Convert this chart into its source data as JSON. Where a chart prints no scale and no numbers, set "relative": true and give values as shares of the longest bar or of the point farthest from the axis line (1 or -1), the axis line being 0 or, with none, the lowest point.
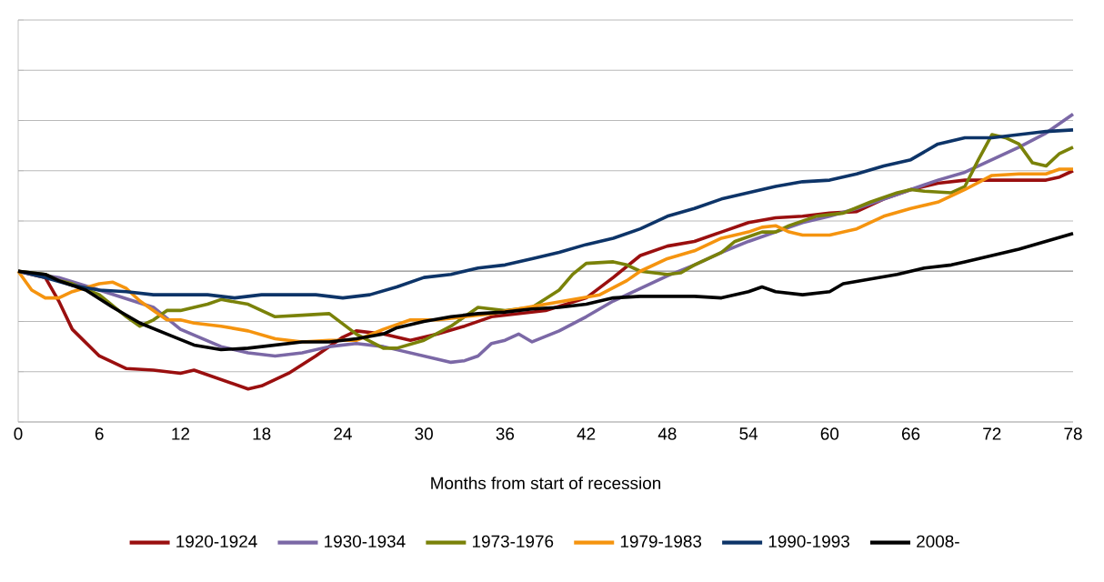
{
  "chart_data": {
    "type": "line",
    "relative": true,
    "xlabel": "Months from start of recession",
    "xlim": [
      0,
      78
    ],
    "xticks": [
      0,
      6,
      12,
      18,
      24,
      30,
      36,
      42,
      48,
      54,
      60,
      66,
      72,
      78
    ],
    "grid": "y",
    "legend": "bottom",
    "marker": "none",
    "line_style": "solid",
    "series": [
      {
        "name": "1920-1924",
        "color": "#9a0f0f",
        "x": [
          0,
          2,
          3,
          4,
          6,
          8,
          10,
          12,
          13,
          15,
          17,
          18,
          20,
          22,
          24,
          25,
          27,
          29,
          31,
          33,
          35,
          37,
          39,
          42,
          44,
          46,
          48,
          50,
          52,
          54,
          56,
          58,
          60,
          62,
          64,
          66,
          68,
          70,
          72,
          74,
          76,
          77,
          78
        ],
        "values": [
          0,
          -0.04,
          -0.19,
          -0.37,
          -0.54,
          -0.62,
          -0.63,
          -0.65,
          -0.63,
          -0.69,
          -0.75,
          -0.73,
          -0.65,
          -0.54,
          -0.42,
          -0.38,
          -0.4,
          -0.44,
          -0.4,
          -0.35,
          -0.29,
          -0.27,
          -0.25,
          -0.17,
          -0.04,
          0.1,
          0.16,
          0.19,
          0.25,
          0.31,
          0.34,
          0.35,
          0.37,
          0.38,
          0.46,
          0.52,
          0.56,
          0.58,
          0.58,
          0.58,
          0.58,
          0.6,
          0.64
        ]
      },
      {
        "name": "1930-1934",
        "color": "#7b68a6",
        "x": [
          0,
          3,
          6,
          10,
          12,
          15,
          17,
          19,
          21,
          23,
          25,
          27,
          29,
          31,
          32,
          33,
          34,
          35,
          36,
          37,
          38,
          40,
          42,
          44,
          46,
          48,
          50,
          52,
          54,
          56,
          58,
          60,
          62,
          64,
          66,
          68,
          70,
          72,
          74,
          76,
          78
        ],
        "values": [
          0,
          -0.04,
          -0.12,
          -0.23,
          -0.37,
          -0.48,
          -0.52,
          -0.54,
          -0.52,
          -0.48,
          -0.46,
          -0.48,
          -0.52,
          -0.56,
          -0.58,
          -0.57,
          -0.54,
          -0.46,
          -0.44,
          -0.4,
          -0.45,
          -0.38,
          -0.29,
          -0.19,
          -0.11,
          -0.03,
          0.04,
          0.12,
          0.19,
          0.25,
          0.31,
          0.35,
          0.4,
          0.46,
          0.52,
          0.58,
          0.63,
          0.71,
          0.79,
          0.88,
          1
        ]
      },
      {
        "name": "1973-1976",
        "color": "#7a8209",
        "x": [
          0,
          2,
          3,
          4,
          6,
          8,
          9,
          10,
          11,
          12,
          14,
          15,
          17,
          19,
          21,
          23,
          25,
          27,
          28,
          30,
          32,
          34,
          36,
          38,
          40,
          41,
          42,
          44,
          45,
          46,
          48,
          49,
          50,
          52,
          53,
          55,
          56,
          57,
          59,
          61,
          63,
          65,
          66,
          67,
          69,
          70,
          71,
          72,
          73,
          74,
          75,
          76,
          77,
          78
        ],
        "values": [
          0,
          -0.02,
          -0.06,
          -0.08,
          -0.15,
          -0.29,
          -0.35,
          -0.31,
          -0.25,
          -0.25,
          -0.21,
          -0.18,
          -0.21,
          -0.29,
          -0.28,
          -0.27,
          -0.4,
          -0.49,
          -0.49,
          -0.44,
          -0.35,
          -0.23,
          -0.25,
          -0.23,
          -0.12,
          -0.02,
          0.05,
          0.06,
          0.04,
          0,
          -0.02,
          -0.01,
          0.04,
          0.12,
          0.19,
          0.25,
          0.25,
          0.29,
          0.35,
          0.37,
          0.44,
          0.5,
          0.52,
          0.51,
          0.5,
          0.54,
          0.71,
          0.87,
          0.85,
          0.81,
          0.69,
          0.67,
          0.75,
          0.79
        ]
      },
      {
        "name": "1979-1983",
        "color": "#f5940f",
        "x": [
          0,
          1,
          2,
          3,
          4,
          6,
          7,
          8,
          9,
          10,
          11,
          12,
          13,
          15,
          17,
          19,
          21,
          23,
          25,
          27,
          29,
          31,
          33,
          35,
          37,
          39,
          41,
          43,
          45,
          46,
          48,
          50,
          52,
          54,
          55,
          56,
          57,
          58,
          60,
          62,
          64,
          66,
          68,
          70,
          72,
          74,
          76,
          77,
          78
        ],
        "values": [
          0,
          -0.12,
          -0.17,
          -0.17,
          -0.13,
          -0.08,
          -0.07,
          -0.11,
          -0.19,
          -0.25,
          -0.31,
          -0.31,
          -0.33,
          -0.35,
          -0.38,
          -0.43,
          -0.45,
          -0.44,
          -0.44,
          -0.37,
          -0.31,
          -0.31,
          -0.29,
          -0.27,
          -0.24,
          -0.21,
          -0.18,
          -0.15,
          -0.06,
          0,
          0.08,
          0.13,
          0.21,
          0.25,
          0.28,
          0.29,
          0.25,
          0.23,
          0.23,
          0.27,
          0.35,
          0.4,
          0.44,
          0.52,
          0.61,
          0.62,
          0.62,
          0.65,
          0.65
        ]
      },
      {
        "name": "1990-1993",
        "color": "#0d3468",
        "x": [
          0,
          2,
          4,
          6,
          8,
          10,
          12,
          14,
          16,
          18,
          20,
          22,
          24,
          26,
          28,
          30,
          32,
          34,
          36,
          38,
          40,
          42,
          44,
          46,
          48,
          50,
          52,
          54,
          56,
          58,
          60,
          62,
          64,
          66,
          68,
          70,
          72,
          74,
          76,
          78
        ],
        "values": [
          0,
          -0.04,
          -0.09,
          -0.12,
          -0.13,
          -0.15,
          -0.15,
          -0.15,
          -0.17,
          -0.15,
          -0.15,
          -0.15,
          -0.17,
          -0.15,
          -0.1,
          -0.04,
          -0.02,
          0.02,
          0.04,
          0.08,
          0.12,
          0.17,
          0.21,
          0.27,
          0.35,
          0.4,
          0.46,
          0.5,
          0.54,
          0.57,
          0.58,
          0.62,
          0.67,
          0.71,
          0.81,
          0.85,
          0.85,
          0.87,
          0.89,
          0.9
        ]
      },
      {
        "name": "2008-",
        "color": "#000000",
        "x": [
          0,
          1,
          2,
          3,
          5,
          7,
          9,
          11,
          13,
          15,
          17,
          19,
          21,
          23,
          25,
          27,
          28,
          30,
          32,
          34,
          36,
          38,
          40,
          42,
          44,
          46,
          48,
          50,
          52,
          54,
          55,
          56,
          58,
          60,
          61,
          63,
          65,
          67,
          69,
          70,
          72,
          74,
          76,
          78
        ],
        "values": [
          0,
          -0.01,
          -0.02,
          -0.06,
          -0.12,
          -0.23,
          -0.33,
          -0.4,
          -0.47,
          -0.5,
          -0.49,
          -0.47,
          -0.45,
          -0.45,
          -0.43,
          -0.4,
          -0.36,
          -0.32,
          -0.29,
          -0.27,
          -0.26,
          -0.24,
          -0.23,
          -0.21,
          -0.17,
          -0.16,
          -0.16,
          -0.16,
          -0.17,
          -0.13,
          -0.1,
          -0.13,
          -0.15,
          -0.13,
          -0.08,
          -0.05,
          -0.02,
          0.02,
          0.04,
          0.06,
          0.1,
          0.14,
          0.19,
          0.24
        ]
      }
    ]
  }
}
